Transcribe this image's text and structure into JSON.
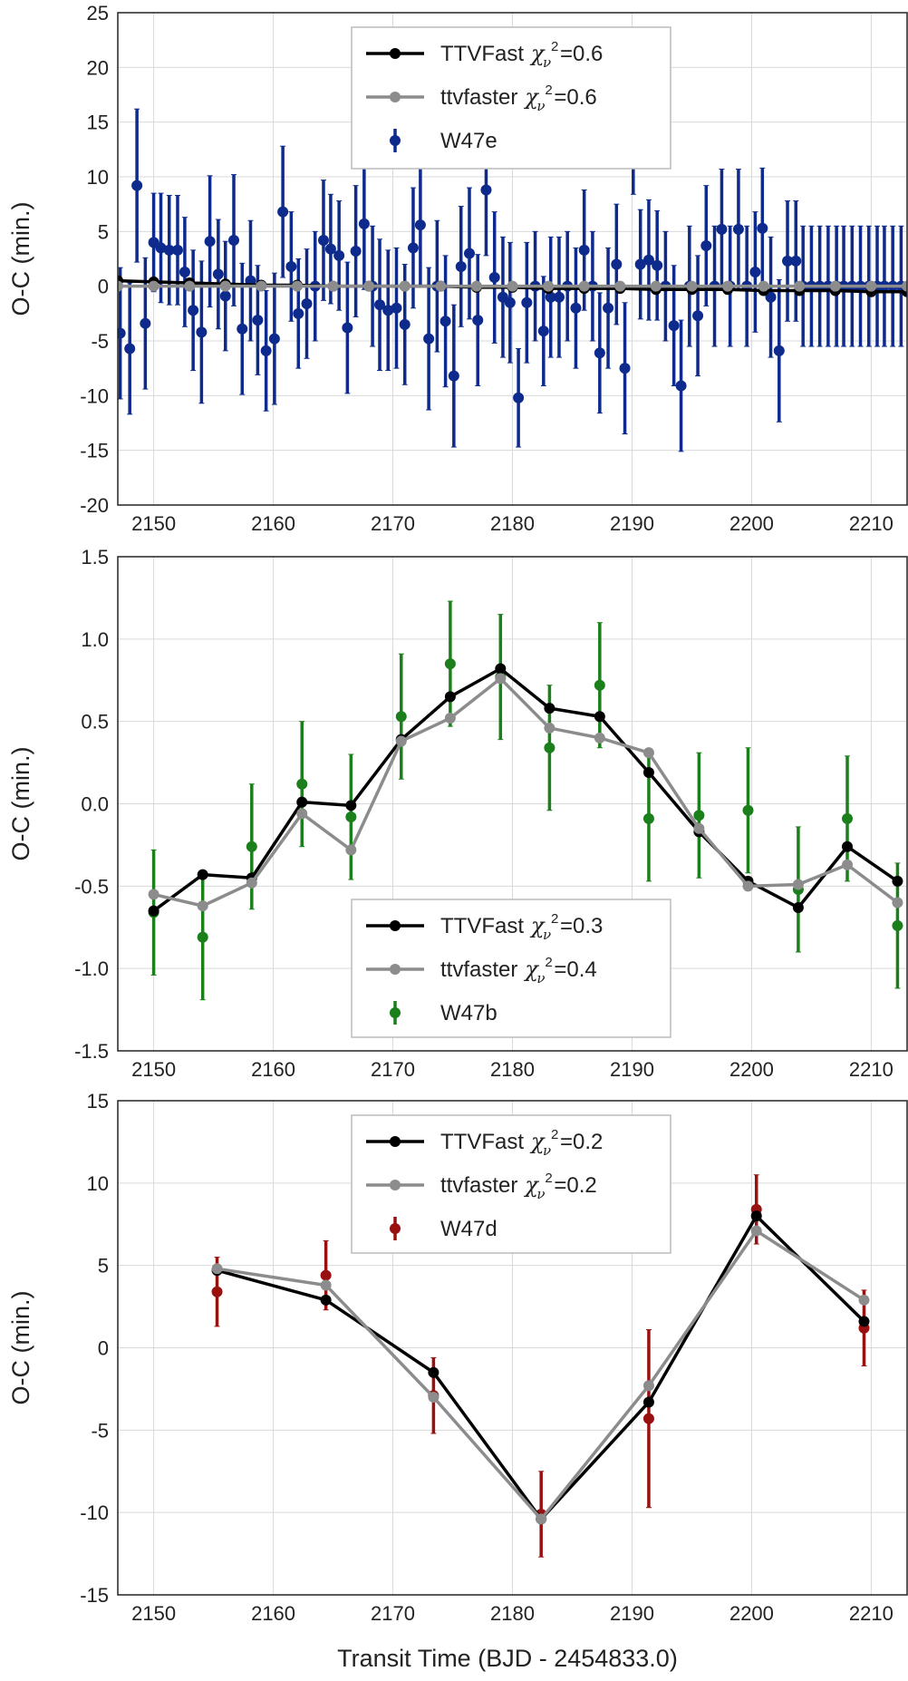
{
  "chart_data": [
    {
      "type": "scatter",
      "title": "",
      "xlabel": "",
      "ylabel": "O-C (min.)",
      "xlim": [
        2147,
        2213
      ],
      "ylim": [
        -20,
        25
      ],
      "xticks": [
        2150,
        2160,
        2170,
        2180,
        2190,
        2200,
        2210
      ],
      "yticks": [
        -20,
        -15,
        -10,
        -5,
        0,
        5,
        10,
        15,
        20,
        25
      ],
      "grid": true,
      "legend_position": "top-center",
      "series": [
        {
          "name": "TTVFast",
          "kind": "line",
          "color": "#000000",
          "chi_value": "=0.6",
          "x": [
            2147,
            2150,
            2153,
            2156,
            2159,
            2162,
            2165,
            2168,
            2171,
            2174,
            2177,
            2180,
            2183,
            2186,
            2189,
            2192,
            2195,
            2198,
            2201,
            2204,
            2207,
            2210,
            2213
          ],
          "y": [
            0.5,
            0.4,
            0.3,
            0.2,
            0.1,
            0.1,
            0.0,
            0.0,
            0.0,
            0.0,
            -0.1,
            -0.1,
            -0.2,
            -0.2,
            -0.2,
            -0.3,
            -0.3,
            -0.3,
            -0.4,
            -0.4,
            -0.4,
            -0.5,
            -0.5
          ]
        },
        {
          "name": "ttvfaster",
          "kind": "line",
          "color": "#8c8c8c",
          "chi_value": "=0.6",
          "x": [
            2147,
            2150,
            2153,
            2156,
            2159,
            2162,
            2165,
            2168,
            2171,
            2174,
            2177,
            2180,
            2183,
            2186,
            2189,
            2192,
            2195,
            2198,
            2201,
            2204,
            2207,
            2210,
            2213
          ],
          "y": [
            0.0,
            0.0,
            0.0,
            0.0,
            0.0,
            0.0,
            0.0,
            0.0,
            0.0,
            0.0,
            0.0,
            0.0,
            0.0,
            0.0,
            0.0,
            0.0,
            0.0,
            0.0,
            0.0,
            0.0,
            0.0,
            0.0,
            0.0
          ]
        },
        {
          "name": "W47e",
          "kind": "errorbar",
          "color": "#0d2a8c",
          "x": [
            2147.2,
            2148.0,
            2148.6,
            2149.3,
            2150.0,
            2150.6,
            2151.3,
            2152.0,
            2152.6,
            2153.3,
            2154.0,
            2154.7,
            2155.4,
            2156.0,
            2156.7,
            2157.4,
            2158.1,
            2158.7,
            2159.4,
            2160.1,
            2160.8,
            2161.5,
            2162.1,
            2162.8,
            2163.5,
            2164.2,
            2164.8,
            2165.5,
            2166.2,
            2166.9,
            2167.6,
            2168.3,
            2168.9,
            2169.6,
            2170.3,
            2171.0,
            2171.7,
            2172.3,
            2173.0,
            2173.7,
            2174.4,
            2175.1,
            2175.7,
            2176.4,
            2177.1,
            2177.8,
            2178.5,
            2179.2,
            2179.8,
            2180.5,
            2181.2,
            2181.9,
            2182.6,
            2183.2,
            2183.9,
            2184.6,
            2185.3,
            2186.0,
            2186.7,
            2187.3,
            2188.0,
            2188.7,
            2189.4,
            2190.1,
            2190.7,
            2191.4,
            2192.1,
            2192.8,
            2193.5,
            2194.1,
            2194.8,
            2195.5,
            2196.2,
            2196.9,
            2197.5,
            2198.2,
            2198.9,
            2199.6,
            2200.3,
            2200.9,
            2201.6,
            2202.3,
            2203.0,
            2203.7,
            2204.3,
            2205.0,
            2205.7,
            2206.4,
            2207.1,
            2207.7,
            2208.4,
            2209.1,
            2209.8,
            2210.5,
            2211.1,
            2211.8,
            2212.5
          ],
          "y": [
            -4.3,
            -5.7,
            9.2,
            -3.4,
            4.0,
            3.5,
            3.3,
            3.3,
            1.3,
            -2.2,
            -4.2,
            4.1,
            1.1,
            -0.9,
            4.2,
            -3.9,
            0.5,
            -3.1,
            -5.9,
            -4.8,
            6.8,
            1.8,
            -2.5,
            -1.6,
            0.0,
            4.2,
            3.4,
            2.8,
            -3.8,
            3.2,
            5.7,
            0.0,
            -1.7,
            -2.2,
            -2.0,
            -3.5,
            3.5,
            5.6,
            -4.8,
            0.0,
            -3.2,
            -8.2,
            1.8,
            3.0,
            -3.1,
            8.8,
            0.8,
            -1.0,
            -1.5,
            -10.2,
            -1.5,
            0.0,
            -4.1,
            -1.0,
            -1.0,
            0.0,
            -2.0,
            3.3,
            0.0,
            -6.1,
            -2.0,
            2.0,
            -7.5,
            14.4,
            2.0,
            2.4,
            1.9,
            0.0,
            -3.6,
            -9.1,
            0.0,
            -2.7,
            3.7,
            0.0,
            5.2,
            0.0,
            5.2,
            0.0,
            1.3,
            5.3,
            -1.0,
            -5.9,
            2.3,
            2.3,
            0.0,
            0.0,
            0.0,
            0.0,
            0.0,
            0.0,
            0.0,
            0.0,
            0.0,
            0.0,
            0.0,
            0.0,
            0.0
          ],
          "yerr": [
            6.0,
            6.0,
            7.0,
            6.0,
            4.5,
            5.0,
            5.0,
            5.0,
            5.0,
            5.5,
            6.5,
            6.0,
            5.0,
            5.0,
            6.0,
            6.0,
            5.5,
            5.0,
            5.5,
            6.0,
            6.0,
            5.0,
            5.0,
            5.0,
            5.0,
            5.5,
            5.0,
            5.0,
            6.0,
            6.0,
            6.0,
            5.5,
            6.0,
            5.5,
            5.5,
            5.5,
            5.5,
            5.5,
            6.5,
            6.0,
            6.0,
            6.5,
            5.5,
            6.0,
            6.0,
            6.0,
            6.0,
            5.5,
            5.5,
            4.5,
            5.5,
            5.0,
            5.0,
            5.5,
            5.5,
            5.0,
            5.5,
            5.5,
            5.0,
            5.5,
            5.5,
            5.5,
            6.0,
            6.0,
            5.0,
            5.5,
            5.0,
            5.0,
            5.5,
            6.0,
            5.5,
            5.5,
            5.5,
            5.5,
            5.5,
            5.5,
            5.5,
            5.5,
            5.5,
            5.5,
            5.5,
            6.5,
            5.5,
            5.5,
            5.5,
            5.5,
            5.5,
            5.5,
            5.5,
            5.5,
            5.5,
            5.5,
            5.5,
            5.5,
            5.5,
            5.5,
            5.5
          ]
        }
      ]
    },
    {
      "type": "scatter",
      "title": "",
      "xlabel": "",
      "ylabel": "O-C (min.)",
      "xlim": [
        2147,
        2213
      ],
      "ylim": [
        -1.5,
        1.5
      ],
      "xticks": [
        2150,
        2160,
        2170,
        2180,
        2190,
        2200,
        2210
      ],
      "yticks": [
        -1.5,
        -1.0,
        -0.5,
        0.0,
        0.5,
        1.0,
        1.5
      ],
      "grid": true,
      "legend_position": "lower-center",
      "series": [
        {
          "name": "TTVFast",
          "kind": "line",
          "color": "#000000",
          "chi_value": "=0.3",
          "x": [
            2150.0,
            2154.1,
            2158.2,
            2162.4,
            2166.5,
            2170.7,
            2174.8,
            2179.0,
            2183.1,
            2187.3,
            2191.4,
            2195.6,
            2199.7,
            2203.9,
            2208.0,
            2212.2
          ],
          "y": [
            -0.65,
            -0.43,
            -0.45,
            0.01,
            -0.01,
            0.39,
            0.65,
            0.82,
            0.58,
            0.53,
            0.19,
            -0.17,
            -0.47,
            -0.63,
            -0.26,
            -0.47
          ]
        },
        {
          "name": "ttvfaster",
          "kind": "line",
          "color": "#8c8c8c",
          "chi_value": "=0.4",
          "x": [
            2150.0,
            2154.1,
            2158.2,
            2162.4,
            2166.5,
            2170.7,
            2174.8,
            2179.0,
            2183.1,
            2187.3,
            2191.4,
            2195.6,
            2199.7,
            2203.9,
            2208.0,
            2212.2
          ],
          "y": [
            -0.55,
            -0.62,
            -0.48,
            -0.06,
            -0.28,
            0.38,
            0.52,
            0.76,
            0.46,
            0.4,
            0.31,
            -0.15,
            -0.5,
            -0.49,
            -0.37,
            -0.6
          ]
        },
        {
          "name": "W47b",
          "kind": "errorbar",
          "color": "#1b7f1b",
          "x": [
            2150.0,
            2154.1,
            2158.2,
            2162.4,
            2166.5,
            2170.7,
            2174.8,
            2179.0,
            2183.1,
            2187.3,
            2191.4,
            2195.6,
            2199.7,
            2203.9,
            2208.0,
            2212.2
          ],
          "y": [
            -0.66,
            -0.81,
            -0.26,
            0.12,
            -0.08,
            0.53,
            0.85,
            0.77,
            0.34,
            0.72,
            -0.09,
            -0.07,
            -0.04,
            -0.52,
            -0.09,
            -0.74
          ],
          "yerr": [
            0.38,
            0.38,
            0.38,
            0.38,
            0.38,
            0.38,
            0.38,
            0.38,
            0.38,
            0.38,
            0.38,
            0.38,
            0.38,
            0.38,
            0.38,
            0.38
          ]
        }
      ]
    },
    {
      "type": "scatter",
      "title": "",
      "xlabel": "Transit Time (BJD - 2454833.0)",
      "ylabel": "O-C (min.)",
      "xlim": [
        2147,
        2213
      ],
      "ylim": [
        -15,
        15
      ],
      "xticks": [
        2150,
        2160,
        2170,
        2180,
        2190,
        2200,
        2210
      ],
      "yticks": [
        -15,
        -10,
        -5,
        0,
        5,
        10,
        15
      ],
      "grid": true,
      "legend_position": "top-center",
      "series": [
        {
          "name": "TTVFast",
          "kind": "line",
          "color": "#000000",
          "chi_value": "=0.2",
          "x": [
            2155.3,
            2164.4,
            2173.4,
            2182.4,
            2191.4,
            2200.4,
            2209.4
          ],
          "y": [
            4.7,
            2.9,
            -1.5,
            -10.4,
            -3.3,
            8.0,
            1.6
          ]
        },
        {
          "name": "ttvfaster",
          "kind": "line",
          "color": "#8c8c8c",
          "chi_value": "=0.2",
          "x": [
            2155.3,
            2164.4,
            2173.4,
            2182.4,
            2191.4,
            2200.4,
            2209.4
          ],
          "y": [
            4.8,
            3.8,
            -3.0,
            -10.4,
            -2.3,
            7.1,
            2.9
          ]
        },
        {
          "name": "W47d",
          "kind": "errorbar",
          "color": "#991010",
          "x": [
            2155.3,
            2164.4,
            2173.4,
            2182.4,
            2191.4,
            2200.4,
            2209.4
          ],
          "y": [
            3.4,
            4.4,
            -2.9,
            -10.1,
            -4.3,
            8.4,
            1.2
          ],
          "yerr": [
            2.1,
            2.1,
            2.3,
            2.6,
            5.4,
            2.1,
            2.3
          ]
        }
      ]
    }
  ]
}
